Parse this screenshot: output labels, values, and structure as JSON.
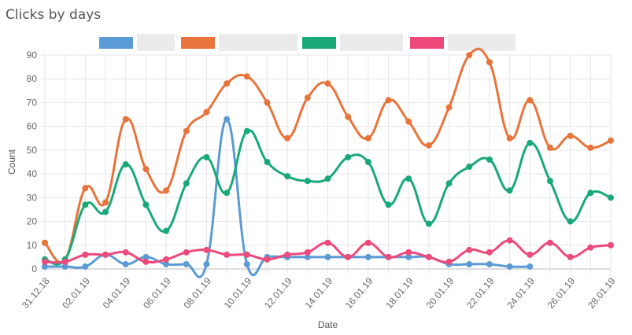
{
  "chart_data": {
    "type": "line",
    "title": "Clicks by days",
    "xlabel": "Date",
    "ylabel": "Count",
    "ylim": [
      0,
      90
    ],
    "yticks": [
      0,
      10,
      20,
      30,
      40,
      50,
      60,
      70,
      80,
      90
    ],
    "grid": true,
    "legend_position": "top-center",
    "categories": [
      "31.12.18",
      "01.01.19",
      "02.01.19",
      "03.01.19",
      "04.01.19",
      "05.01.19",
      "06.01.19",
      "07.01.19",
      "08.01.19",
      "09.01.19",
      "10.01.19",
      "11.01.19",
      "12.01.19",
      "13.01.19",
      "14.01.19",
      "15.01.19",
      "16.01.19",
      "17.01.19",
      "18.01.19",
      "19.01.19",
      "20.01.19",
      "21.01.19",
      "22.01.19",
      "23.01.19",
      "24.01.19",
      "25.01.19",
      "26.01.19",
      "27.01.19",
      "28.01.19"
    ],
    "tick_labels": [
      "31.12.18",
      "02.01.19",
      "04.01.19",
      "06.01.19",
      "08.01.19",
      "10.01.19",
      "12.01.19",
      "14.01.19",
      "16.01.19",
      "18.01.19",
      "20.01.19",
      "22.01.19",
      "24.01.19",
      "26.01.19",
      "28.01.19"
    ],
    "series": [
      {
        "color": "#5b9bd5",
        "values": [
          1,
          1,
          1,
          6,
          2,
          5,
          2,
          2,
          2,
          63,
          2,
          5,
          5,
          5,
          5,
          5,
          5,
          5,
          5,
          5,
          2,
          2,
          2,
          1,
          1,
          null,
          null,
          null,
          null
        ]
      },
      {
        "color": "#e8743b",
        "values": [
          11,
          4,
          34,
          28,
          63,
          42,
          33,
          58,
          66,
          78,
          81,
          70,
          55,
          72,
          78,
          64,
          55,
          71,
          62,
          52,
          68,
          90,
          87,
          55,
          71,
          51,
          56,
          51,
          54
        ]
      },
      {
        "color": "#19a979",
        "values": [
          4,
          4,
          27,
          24,
          44,
          27,
          16,
          36,
          47,
          32,
          58,
          45,
          39,
          37,
          38,
          47,
          45,
          27,
          38,
          19,
          36,
          43,
          46,
          33,
          53,
          37,
          20,
          32,
          30
        ]
      },
      {
        "color": "#ed4a7b",
        "values": [
          3,
          3,
          6,
          6,
          7,
          3,
          4,
          7,
          8,
          6,
          6,
          4,
          6,
          7,
          11,
          5,
          11,
          5,
          7,
          5,
          3,
          8,
          7,
          12,
          6,
          11,
          5,
          9,
          10
        ]
      }
    ]
  }
}
